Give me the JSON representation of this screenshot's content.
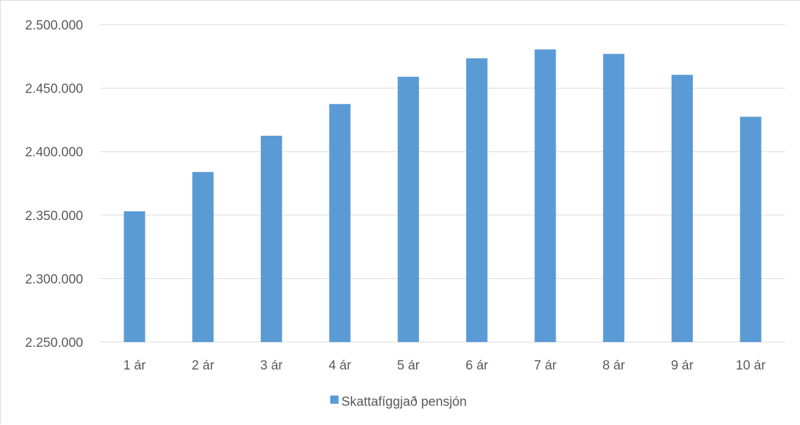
{
  "chart_data": {
    "type": "bar",
    "title": "",
    "xlabel": "",
    "ylabel": "",
    "categories": [
      "1 ár",
      "2 ár",
      "3 ár",
      "4 ár",
      "5 ár",
      "6 ár",
      "7 ár",
      "8 ár",
      "9 ár",
      "10 ár"
    ],
    "series": [
      {
        "name": "Skattafíggjað pensjón",
        "color": "#5b9bd5",
        "values": [
          2353000,
          2384000,
          2412500,
          2437500,
          2459000,
          2473500,
          2480500,
          2477000,
          2460500,
          2427500
        ]
      }
    ],
    "ylim": [
      2250000,
      2500000
    ],
    "y_ticks": [
      2250000,
      2300000,
      2350000,
      2400000,
      2450000,
      2500000
    ],
    "y_tick_labels": [
      "2.250.000",
      "2.300.000",
      "2.350.000",
      "2.400.000",
      "2.450.000",
      "2.500.000"
    ],
    "grid": true,
    "legend": "bottom-center",
    "colors": {
      "bar": "#5b9bd5",
      "grid": "#d9d9d9",
      "text": "#595959"
    }
  }
}
